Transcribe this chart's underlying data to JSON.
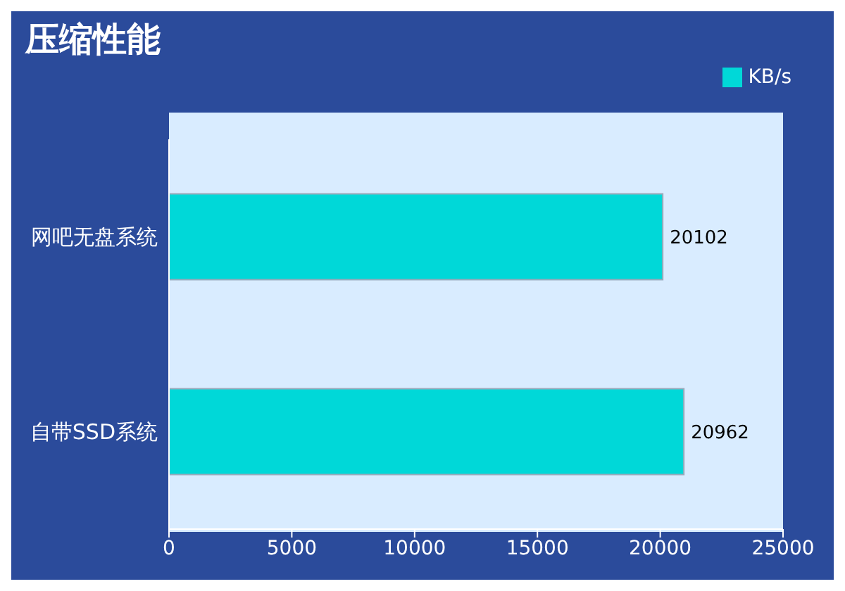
{
  "chart_data": {
    "type": "bar",
    "orientation": "horizontal",
    "title": "压缩性能",
    "categories": [
      "网吧无盘系统",
      "自带SSD系统"
    ],
    "series": [
      {
        "name": "KB/s",
        "color": "#00d8d8",
        "values": [
          20102,
          20962
        ]
      }
    ],
    "xlim": [
      0,
      25000
    ],
    "xticks": [
      0,
      5000,
      10000,
      15000,
      20000,
      25000
    ],
    "data_labels": true,
    "legend": "top right"
  }
}
